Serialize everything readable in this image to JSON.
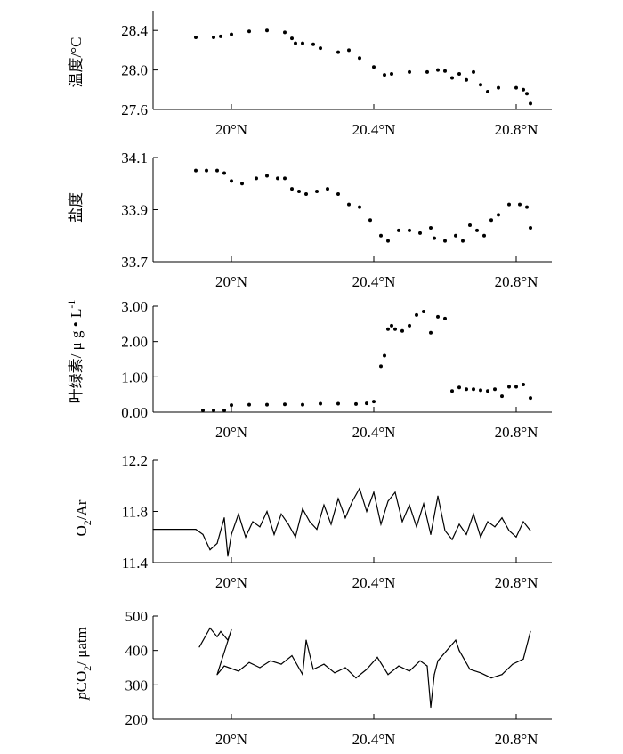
{
  "chart_data": [
    {
      "type": "scatter",
      "ylabel": "温度/°C",
      "xlim": [
        19.78,
        20.9
      ],
      "ylim": [
        27.6,
        28.6
      ],
      "yticks": [
        "27.6",
        "28.0",
        "28.4"
      ],
      "xticks": [
        "20°N",
        "20.4°N",
        "20.8°N"
      ],
      "series": [
        {
          "x": [
            19.9,
            19.95,
            19.97,
            20.0,
            20.05,
            20.1,
            20.15,
            20.17,
            20.18,
            20.2,
            20.23,
            20.25,
            20.3,
            20.33,
            20.36,
            20.4,
            20.43,
            20.45,
            20.5,
            20.55,
            20.58,
            20.6,
            20.62,
            20.64,
            20.66,
            20.68,
            20.7,
            20.72,
            20.75,
            20.8,
            20.82,
            20.83,
            20.84
          ],
          "y": [
            28.33,
            28.33,
            28.34,
            28.36,
            28.39,
            28.4,
            28.38,
            28.32,
            28.27,
            28.27,
            28.26,
            28.22,
            28.18,
            28.2,
            28.12,
            28.03,
            27.95,
            27.96,
            27.98,
            27.98,
            28.0,
            27.99,
            27.92,
            27.96,
            27.9,
            27.98,
            27.85,
            27.78,
            27.82,
            27.82,
            27.8,
            27.76,
            27.66
          ]
        }
      ]
    },
    {
      "type": "scatter",
      "ylabel": "盐度",
      "xlim": [
        19.78,
        20.9
      ],
      "ylim": [
        33.7,
        34.1
      ],
      "yticks": [
        "33.7",
        "33.9",
        "34.1"
      ],
      "xticks": [
        "20°N",
        "20.4°N",
        "20.8°N"
      ],
      "series": [
        {
          "x": [
            19.9,
            19.93,
            19.96,
            19.98,
            20.0,
            20.03,
            20.07,
            20.1,
            20.13,
            20.15,
            20.17,
            20.19,
            20.21,
            20.24,
            20.27,
            20.3,
            20.33,
            20.36,
            20.39,
            20.42,
            20.44,
            20.47,
            20.5,
            20.53,
            20.56,
            20.57,
            20.6,
            20.63,
            20.65,
            20.67,
            20.69,
            20.71,
            20.73,
            20.75,
            20.78,
            20.81,
            20.83,
            20.84
          ],
          "y": [
            34.05,
            34.05,
            34.05,
            34.04,
            34.01,
            34.0,
            34.02,
            34.03,
            34.02,
            34.02,
            33.98,
            33.97,
            33.96,
            33.97,
            33.98,
            33.96,
            33.92,
            33.91,
            33.86,
            33.8,
            33.78,
            33.82,
            33.82,
            33.81,
            33.83,
            33.79,
            33.78,
            33.8,
            33.78,
            33.84,
            33.82,
            33.8,
            33.86,
            33.88,
            33.92,
            33.92,
            33.91,
            33.83
          ]
        }
      ]
    },
    {
      "type": "scatter",
      "ylabel": "叶绿素/ μ g • L-1",
      "xlim": [
        19.78,
        20.9
      ],
      "ylim": [
        0.0,
        3.0
      ],
      "yticks": [
        "0.00",
        "1.00",
        "2.00",
        "3.00"
      ],
      "xticks": [
        "20°N",
        "20.4°N",
        "20.8°N"
      ],
      "series": [
        {
          "x": [
            19.92,
            19.95,
            19.98,
            20.0,
            20.05,
            20.1,
            20.15,
            20.2,
            20.25,
            20.3,
            20.35,
            20.38,
            20.4,
            20.42,
            20.43,
            20.44,
            20.45,
            20.46,
            20.48,
            20.5,
            20.52,
            20.54,
            20.56,
            20.58,
            20.6,
            20.62,
            20.64,
            20.66,
            20.68,
            20.7,
            20.72,
            20.74,
            20.76,
            20.78,
            20.8,
            20.82,
            20.84
          ],
          "y": [
            0.05,
            0.05,
            0.05,
            0.2,
            0.21,
            0.21,
            0.22,
            0.21,
            0.24,
            0.24,
            0.23,
            0.25,
            0.3,
            1.3,
            1.6,
            2.35,
            2.45,
            2.35,
            2.3,
            2.45,
            2.75,
            2.85,
            2.25,
            2.7,
            2.65,
            0.6,
            0.7,
            0.65,
            0.65,
            0.62,
            0.6,
            0.65,
            0.45,
            0.72,
            0.72,
            0.78,
            0.4
          ]
        }
      ]
    },
    {
      "type": "line",
      "ylabel": "O2/Ar",
      "xlim": [
        19.78,
        20.9
      ],
      "ylim": [
        11.4,
        12.2
      ],
      "yticks": [
        "11.4",
        "11.8",
        "12.2"
      ],
      "xticks": [
        "20°N",
        "20.4°N",
        "20.8°N"
      ],
      "series": [
        {
          "x": [
            19.78,
            19.9,
            19.92,
            19.94,
            19.96,
            19.98,
            19.99,
            20.0,
            20.02,
            20.04,
            20.06,
            20.08,
            20.1,
            20.12,
            20.14,
            20.16,
            20.18,
            20.2,
            20.22,
            20.24,
            20.26,
            20.28,
            20.3,
            20.32,
            20.34,
            20.36,
            20.38,
            20.4,
            20.42,
            20.44,
            20.46,
            20.48,
            20.5,
            20.52,
            20.54,
            20.56,
            20.58,
            20.6,
            20.62,
            20.64,
            20.66,
            20.68,
            20.7,
            20.72,
            20.74,
            20.76,
            20.78,
            20.8,
            20.82,
            20.84
          ],
          "y": [
            11.66,
            11.66,
            11.62,
            11.5,
            11.55,
            11.75,
            11.45,
            11.62,
            11.78,
            11.6,
            11.72,
            11.68,
            11.8,
            11.62,
            11.78,
            11.7,
            11.6,
            11.82,
            11.72,
            11.66,
            11.85,
            11.7,
            11.9,
            11.75,
            11.88,
            11.98,
            11.8,
            11.95,
            11.7,
            11.88,
            11.95,
            11.72,
            11.85,
            11.68,
            11.86,
            11.62,
            11.92,
            11.65,
            11.58,
            11.7,
            11.62,
            11.78,
            11.6,
            11.72,
            11.68,
            11.75,
            11.65,
            11.6,
            11.72,
            11.65
          ]
        }
      ]
    },
    {
      "type": "line",
      "ylabel": "pCO2/ μatm",
      "xlim": [
        19.78,
        20.9
      ],
      "ylim": [
        200,
        500
      ],
      "yticks": [
        "200",
        "300",
        "400",
        "500"
      ],
      "xticks": [
        "20°N",
        "20.4°N",
        "20.8°N"
      ],
      "series": [
        {
          "x": [
            19.91,
            19.94,
            19.96,
            19.97,
            19.99,
            20.0,
            19.96,
            19.98,
            20.02,
            20.05,
            20.08,
            20.11,
            20.14,
            20.17,
            20.2,
            20.21,
            20.23,
            20.26,
            20.29,
            20.32,
            20.35,
            20.38,
            20.41,
            20.44,
            20.47,
            20.5,
            20.53,
            20.55,
            20.56,
            20.57,
            20.58,
            20.63,
            20.64,
            20.67,
            20.7,
            20.73,
            20.76,
            20.79,
            20.82,
            20.84
          ],
          "y": [
            410,
            465,
            440,
            455,
            430,
            460,
            330,
            355,
            340,
            365,
            350,
            370,
            360,
            385,
            330,
            430,
            345,
            360,
            335,
            350,
            320,
            345,
            380,
            330,
            355,
            340,
            370,
            355,
            235,
            330,
            370,
            430,
            400,
            345,
            335,
            320,
            330,
            360,
            375,
            455
          ]
        }
      ]
    }
  ]
}
